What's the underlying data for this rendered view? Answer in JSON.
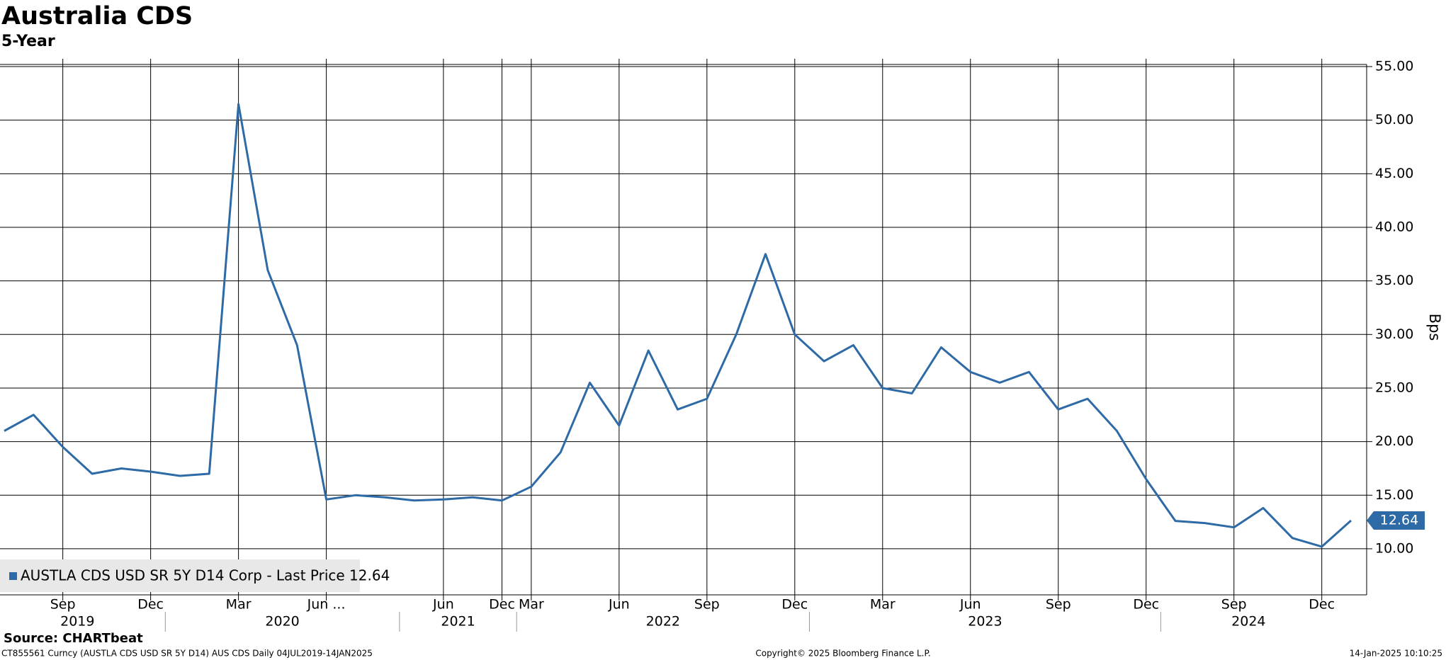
{
  "chart_data": {
    "type": "line",
    "title": "Australia CDS",
    "subtitle": "5-Year",
    "y_axis_label": "Bps",
    "source": "Source: CHARTbeat",
    "footer": {
      "left": "CT855561 Curncy (AUSTLA CDS USD SR 5Y D14) AUS CDS  Daily 04JUL2019-14JAN2025",
      "center": "Copyright© 2025 Bloomberg Finance L.P.",
      "right": "14-Jan-2025 10:10:25"
    },
    "x": [
      "2019-07",
      "2019-08",
      "2019-09",
      "2019-10",
      "2019-11",
      "2019-12",
      "2020-01",
      "2020-02",
      "2020-03",
      "2020-04",
      "2020-05",
      "2020-06",
      "2020-09",
      "2020-12",
      "2021-03",
      "2021-06",
      "2021-09",
      "2021-12",
      "2022-03",
      "2022-04",
      "2022-05",
      "2022-06",
      "2022-07",
      "2022-08",
      "2022-09",
      "2022-10",
      "2022-11",
      "2022-12",
      "2023-01",
      "2023-02",
      "2023-03",
      "2023-04",
      "2023-05",
      "2023-06",
      "2023-07",
      "2023-08",
      "2023-09",
      "2023-10",
      "2023-11",
      "2023-12",
      "2024-03",
      "2024-06",
      "2024-09",
      "2024-10",
      "2024-11",
      "2024-12",
      "2025-01"
    ],
    "series": [
      {
        "name": "AUSTLA CDS USD SR 5Y D14 Corp - Last Price 12.64",
        "color": "#2e6aa6",
        "values": [
          21,
          22.5,
          19.5,
          17,
          17.5,
          17.2,
          16.8,
          17,
          51.5,
          36,
          29,
          14.6,
          15,
          14.8,
          14.5,
          14.6,
          14.8,
          14.5,
          15.8,
          19,
          25.5,
          21.5,
          28.5,
          23,
          24,
          30,
          37.5,
          30,
          27.5,
          29,
          25,
          24.5,
          28.8,
          26.5,
          25.5,
          26.5,
          23,
          24,
          21,
          16.5,
          12.6,
          12.4,
          12,
          13.8,
          11,
          10.2,
          12.64
        ]
      }
    ],
    "ylim": [
      5.7,
      55.2
    ],
    "yticks": [
      {
        "value": 10,
        "label": "10.00"
      },
      {
        "value": 15,
        "label": "15.00"
      },
      {
        "value": 20,
        "label": "20.00"
      },
      {
        "value": 25,
        "label": "25.00"
      },
      {
        "value": 30,
        "label": "30.00"
      },
      {
        "value": 35,
        "label": "35.00"
      },
      {
        "value": 40,
        "label": "40.00"
      },
      {
        "value": 45,
        "label": "45.00"
      },
      {
        "value": 50,
        "label": "50.00"
      },
      {
        "value": 55,
        "label": "55.00"
      }
    ],
    "xticks": [
      {
        "value": "2019-09",
        "label": "Sep"
      },
      {
        "value": "2019-12",
        "label": "Dec"
      },
      {
        "value": "2020-03",
        "label": "Mar"
      },
      {
        "value": "2020-06",
        "label": "Jun ..."
      },
      {
        "value": "2021-06",
        "label": "Jun"
      },
      {
        "value": "2021-12",
        "label": "Dec"
      },
      {
        "value": "2022-03",
        "label": "Mar"
      },
      {
        "value": "2022-06",
        "label": "Jun"
      },
      {
        "value": "2022-09",
        "label": "Sep"
      },
      {
        "value": "2022-12",
        "label": "Dec"
      },
      {
        "value": "2023-03",
        "label": "Mar"
      },
      {
        "value": "2023-06",
        "label": "Jun"
      },
      {
        "value": "2023-09",
        "label": "Sep"
      },
      {
        "value": "2023-12",
        "label": "Dec"
      },
      {
        "value": "2024-09",
        "label": "Sep"
      },
      {
        "value": "2024-12",
        "label": "Dec"
      }
    ],
    "x_year_labels": [
      "2019",
      "2020",
      "2021",
      "2022",
      "2023",
      "2024"
    ],
    "grid": true,
    "legend": "bottom-left"
  }
}
